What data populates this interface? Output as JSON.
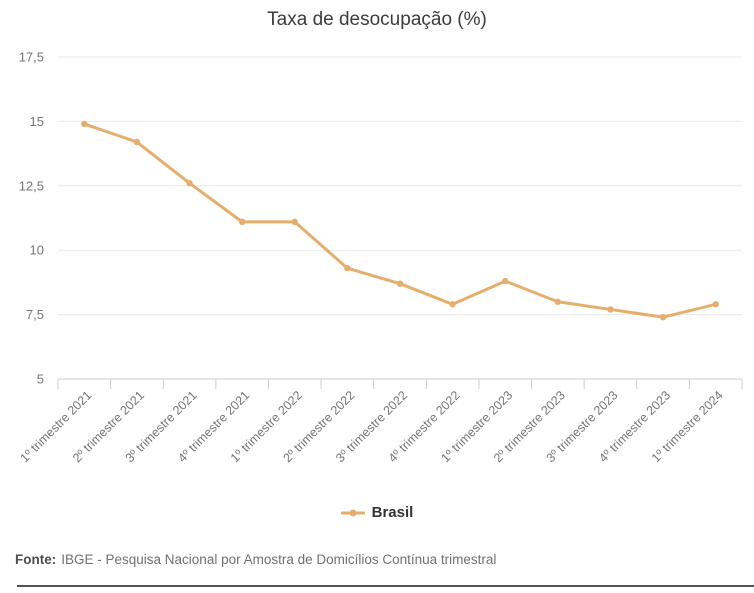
{
  "chart_data": {
    "type": "line",
    "title": "Taxa de desocupação (%)",
    "categories": [
      "1º trimestre 2021",
      "2º trimestre 2021",
      "3º trimestre 2021",
      "4º trimestre 2021",
      "1º trimestre 2022",
      "2º trimestre 2022",
      "3º trimestre 2022",
      "4º trimestre 2022",
      "1º trimestre 2023",
      "2º trimestre 2023",
      "3º trimestre 2023",
      "4º trimestre 2023",
      "1º trimestre 2024"
    ],
    "series": [
      {
        "name": "Brasil",
        "values": [
          14.9,
          14.2,
          12.6,
          11.1,
          11.1,
          9.3,
          8.7,
          7.9,
          8.8,
          8.0,
          7.7,
          7.4,
          7.9
        ]
      }
    ],
    "xlabel": "",
    "ylabel": "",
    "y_axis": {
      "min": 5,
      "max": 17.5,
      "tick_values": [
        17.5,
        15,
        12.5,
        10,
        7.5,
        5
      ],
      "tick_labels": [
        "17,5",
        "15",
        "12,5",
        "10",
        "7,5",
        "5"
      ]
    },
    "grid": true,
    "legend_position": "bottom"
  },
  "legend": {
    "label": "Brasil"
  },
  "footer": {
    "source_label": "Fonte:",
    "source_text": "IBGE - Pesquisa Nacional por Amostra de Domicílios Contínua trimestral"
  },
  "colors": {
    "series_line": "#e6ae6c",
    "grid_line": "#e9e9e9",
    "axis_line": "#cccccc",
    "tick_text": "#757575",
    "title_text": "#3c3c3c",
    "legend_text": "#333333",
    "footer_label_text": "#4d4d4d",
    "footer_text": "#707070",
    "divider": "#535353",
    "background": "#ffffff"
  }
}
